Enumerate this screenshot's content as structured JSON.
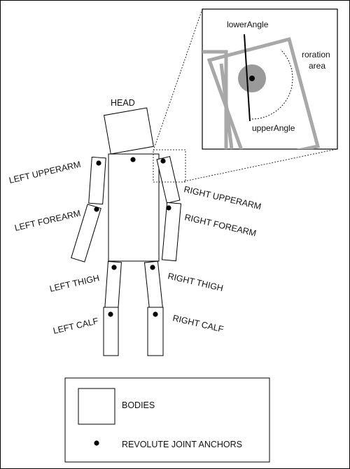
{
  "labels": {
    "head": "HEAD",
    "left_upperarm": "LEFT UPPERARM",
    "left_forearm": "LEFT FOREARM",
    "left_thigh": "LEFT THIGH",
    "left_calf": "LEFT CALF",
    "right_upperarm": "RIGHT UPPERARM",
    "right_forearm": "RIGHT FOREARM",
    "right_thigh": "RIGHT THIGH",
    "right_calf": "RIGHT CALF"
  },
  "inset": {
    "lower_angle": "lowerAngle",
    "upper_angle": "upperAngle",
    "rotation_area_line1": "roration",
    "rotation_area_line2": "area"
  },
  "legend": {
    "bodies": "BODIES",
    "anchors": "REVOLUTE JOINT ANCHORS"
  },
  "colors": {
    "outline": "#000000",
    "inset_body": "#b0b0b0",
    "anchor_disc": "#9a9a9a"
  }
}
